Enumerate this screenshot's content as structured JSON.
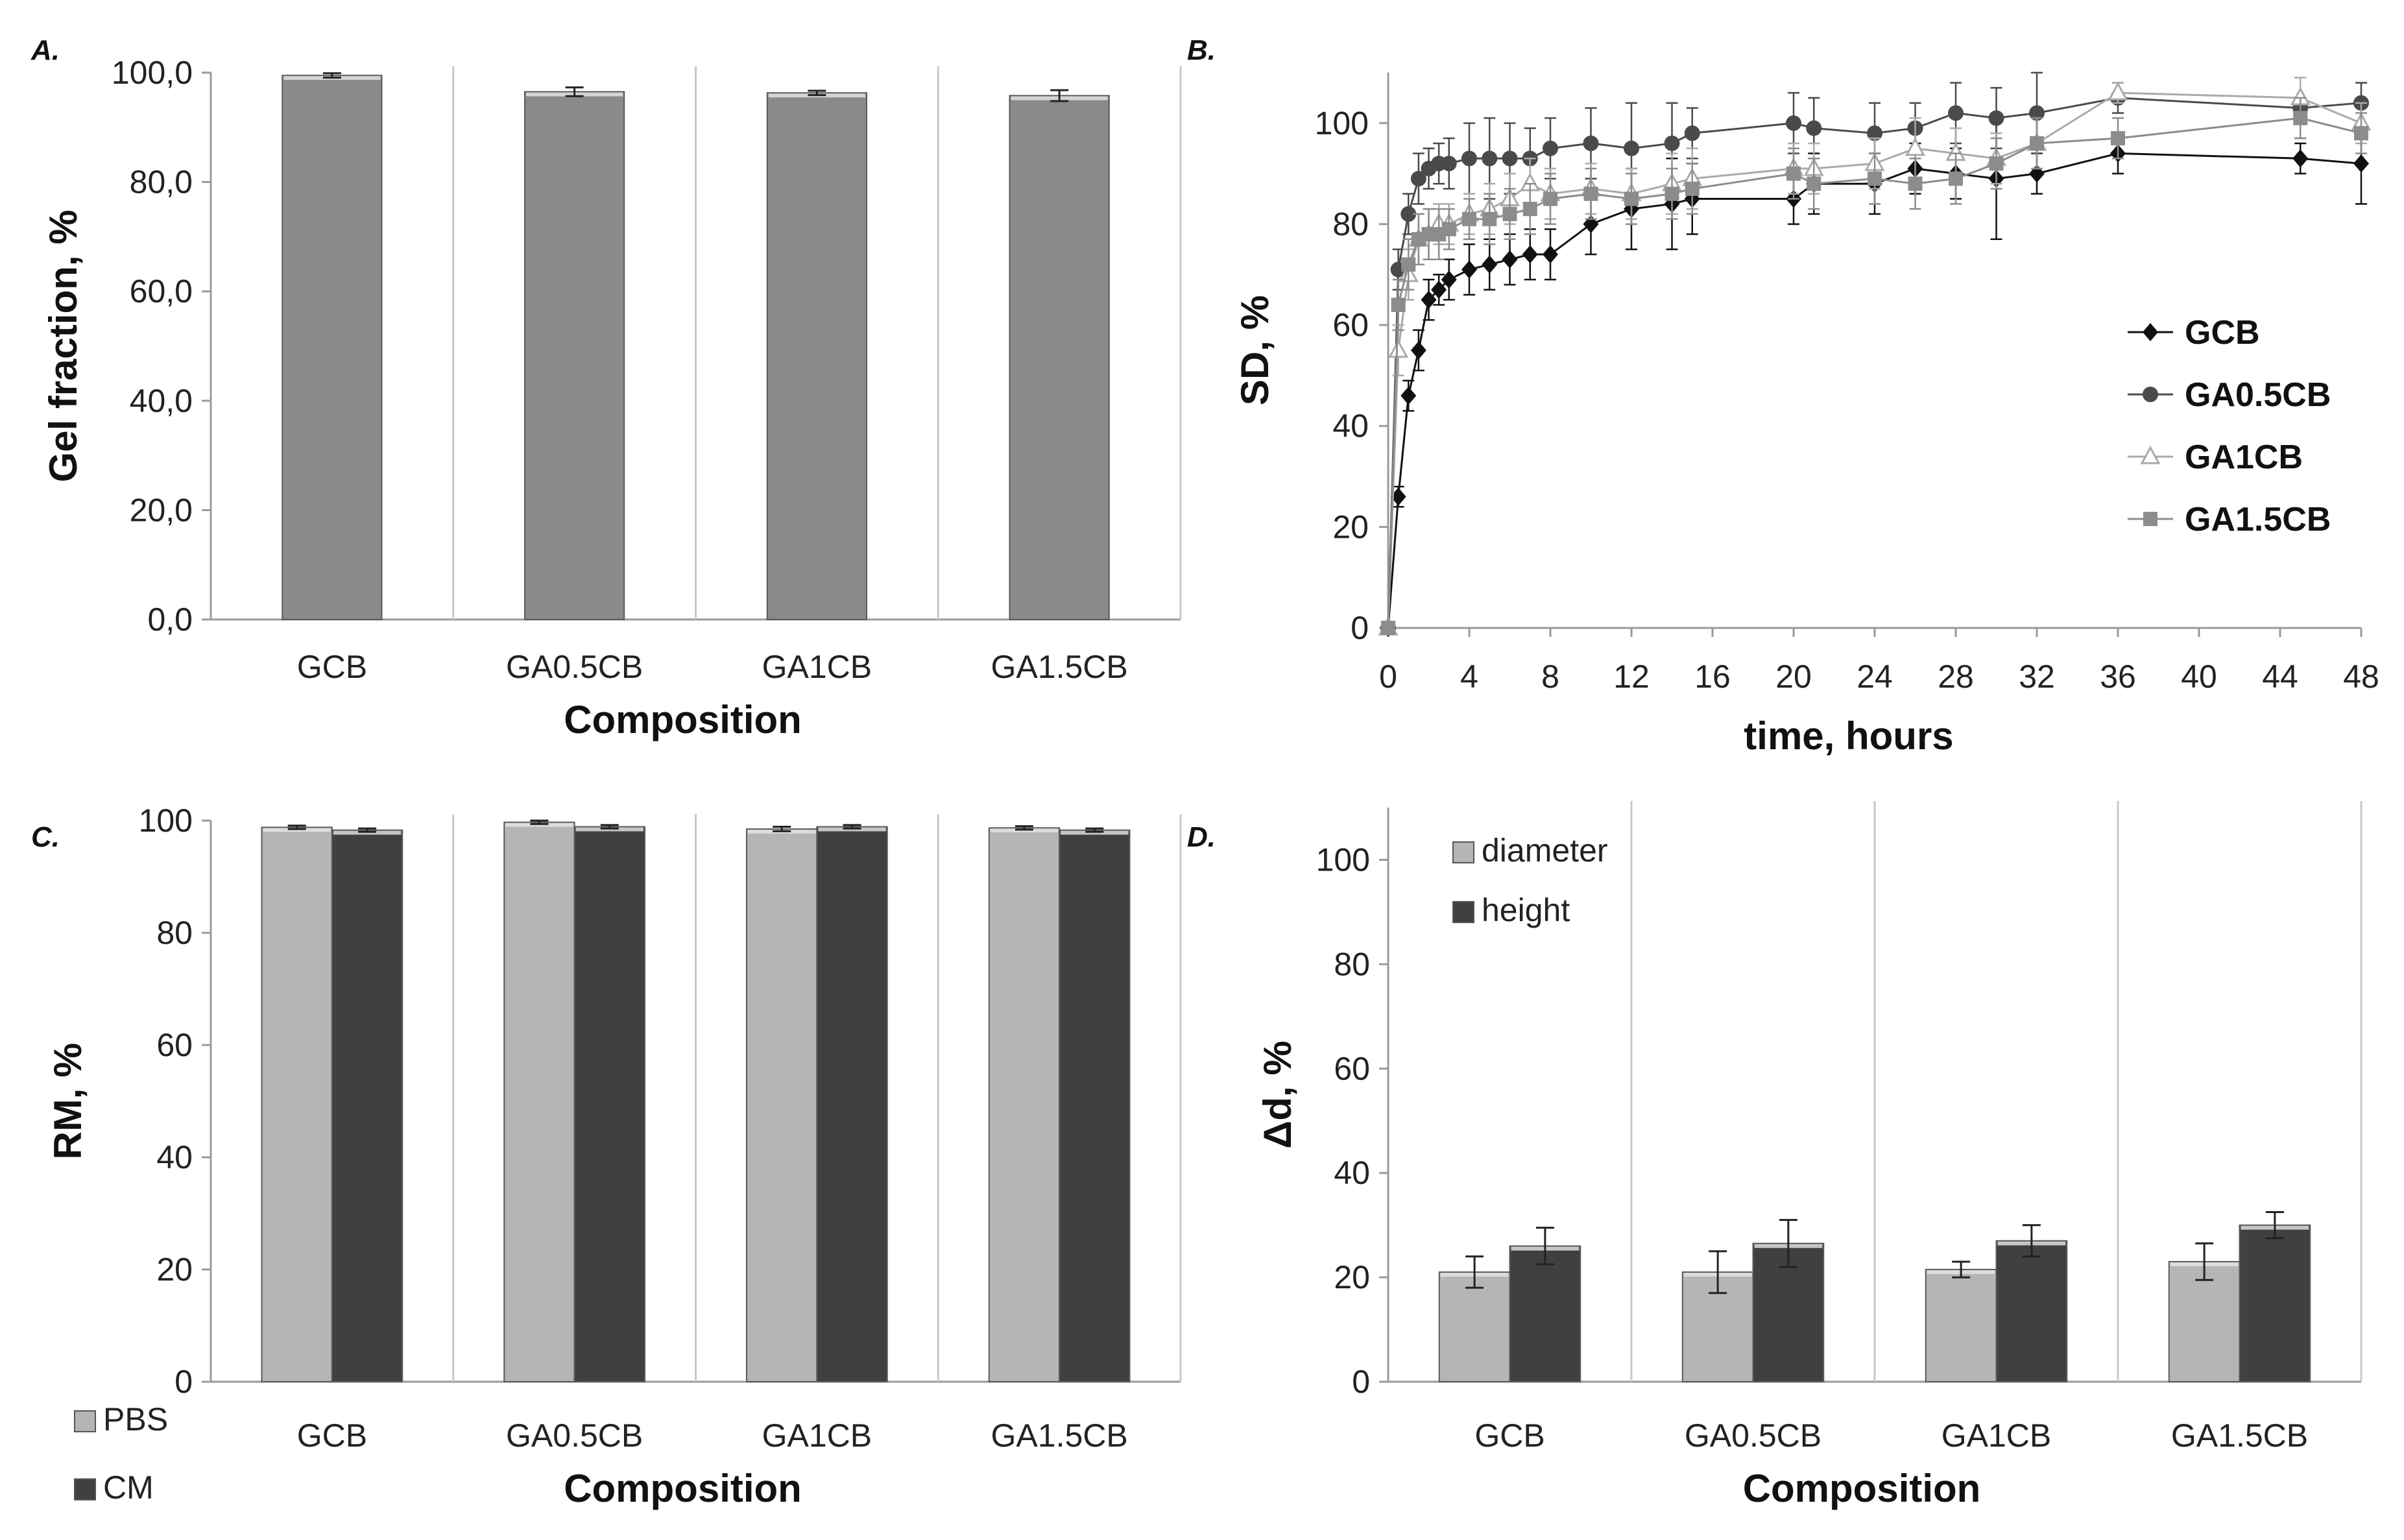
{
  "figure": {
    "panels": [
      {
        "letter": "A."
      },
      {
        "letter": "B."
      },
      {
        "letter": "C."
      },
      {
        "letter": "D."
      }
    ]
  },
  "chart_data": [
    {
      "panel": "A.",
      "type": "bar",
      "title": "",
      "xlabel": "Composition",
      "ylabel": "Gel  fraction, %",
      "ylim": [
        0,
        100
      ],
      "yticks": [
        "0,0",
        "20,0",
        "40,0",
        "60,0",
        "80,0",
        "100,0"
      ],
      "categories": [
        "GCB",
        "GA0.5CB",
        "GA1CB",
        "GA1.5CB"
      ],
      "series": [
        {
          "name": "Gel fraction",
          "color": "#8a8a8a",
          "values": [
            99.5,
            96.5,
            96.3,
            95.8
          ],
          "errors": [
            0.4,
            0.8,
            0.4,
            1.0
          ]
        }
      ],
      "grid": false
    },
    {
      "panel": "B.",
      "type": "line",
      "title": "",
      "xlabel": "time, hours",
      "ylabel": "SD, %",
      "xlim": [
        0,
        48
      ],
      "ylim": [
        0,
        110
      ],
      "xticks": [
        "0",
        "4",
        "8",
        "12",
        "16",
        "20",
        "24",
        "28",
        "32",
        "36",
        "40",
        "44",
        "48"
      ],
      "yticks": [
        "0",
        "20",
        "40",
        "60",
        "80",
        "100"
      ],
      "legend": "right",
      "series": [
        {
          "name": "GCB",
          "marker": "diamond",
          "color": "#111111",
          "x": [
            0,
            0.5,
            1,
            1.5,
            2,
            2.5,
            3,
            4,
            5,
            6,
            7,
            8,
            10,
            12,
            14,
            15,
            20,
            21,
            24,
            26,
            28,
            30,
            32,
            36,
            45,
            48
          ],
          "y": [
            0,
            26,
            46,
            55,
            65,
            67,
            69,
            71,
            72,
            73,
            74,
            74,
            80,
            83,
            84,
            85,
            85,
            88,
            88,
            91,
            90,
            89,
            90,
            94,
            93,
            92
          ],
          "err": [
            0,
            2,
            3,
            4,
            4,
            3,
            4,
            5,
            5,
            5,
            5,
            5,
            6,
            8,
            9,
            7,
            5,
            6,
            6,
            5,
            5,
            12,
            4,
            4,
            3,
            8
          ]
        },
        {
          "name": "GA0.5CB",
          "marker": "circle",
          "color": "#4a4a4a",
          "x": [
            0,
            0.5,
            1,
            1.5,
            2,
            2.5,
            3,
            4,
            5,
            6,
            7,
            8,
            10,
            12,
            14,
            15,
            20,
            21,
            24,
            26,
            28,
            30,
            32,
            36,
            45,
            48
          ],
          "y": [
            0,
            71,
            82,
            89,
            91,
            92,
            92,
            93,
            93,
            93,
            93,
            95,
            96,
            95,
            96,
            98,
            100,
            99,
            98,
            99,
            102,
            101,
            102,
            105,
            103,
            104
          ],
          "err": [
            0,
            4,
            4,
            5,
            4,
            4,
            5,
            7,
            8,
            7,
            6,
            6,
            7,
            9,
            8,
            5,
            6,
            6,
            6,
            5,
            6,
            6,
            8,
            3,
            6,
            4
          ]
        },
        {
          "name": "GA1CB",
          "marker": "triangle",
          "color": "#aaaaaa",
          "x": [
            0,
            0.5,
            1,
            1.5,
            2,
            2.5,
            3,
            4,
            5,
            6,
            7,
            8,
            10,
            12,
            14,
            15,
            20,
            21,
            24,
            26,
            28,
            30,
            32,
            36,
            45,
            48
          ],
          "y": [
            0,
            55,
            70,
            77,
            78,
            80,
            80,
            82,
            83,
            85,
            88,
            86,
            87,
            86,
            88,
            89,
            91,
            91,
            92,
            95,
            94,
            93,
            96,
            106,
            105,
            100
          ],
          "err": [
            0,
            5,
            5,
            5,
            5,
            4,
            4,
            4,
            5,
            5,
            5,
            5,
            5,
            5,
            6,
            6,
            5,
            5,
            5,
            6,
            5,
            5,
            5,
            2,
            4,
            4
          ]
        },
        {
          "name": "GA1.5CB",
          "marker": "square",
          "color": "#8c8c8c",
          "x": [
            0,
            0.5,
            1,
            1.5,
            2,
            2.5,
            3,
            4,
            5,
            6,
            7,
            8,
            10,
            12,
            14,
            15,
            20,
            21,
            24,
            26,
            28,
            30,
            32,
            36,
            45,
            48
          ],
          "y": [
            0,
            64,
            72,
            77,
            78,
            78,
            79,
            81,
            81,
            82,
            83,
            85,
            86,
            85,
            86,
            87,
            90,
            88,
            89,
            88,
            89,
            92,
            96,
            97,
            101,
            98
          ],
          "err": [
            0,
            5,
            5,
            5,
            5,
            5,
            4,
            4,
            5,
            5,
            5,
            5,
            5,
            5,
            5,
            5,
            5,
            5,
            5,
            5,
            5,
            5,
            5,
            4,
            4,
            4
          ]
        }
      ],
      "grid": false
    },
    {
      "panel": "C.",
      "type": "bar",
      "title": "",
      "xlabel": "Composition",
      "ylabel": "RM, %",
      "ylim": [
        0,
        100
      ],
      "yticks": [
        "0",
        "20",
        "40",
        "60",
        "80",
        "100"
      ],
      "categories": [
        "GCB",
        "GA0.5CB",
        "GA1CB",
        "GA1.5CB"
      ],
      "legend": "bottom-left",
      "series": [
        {
          "name": "PBS",
          "color": "#b5b5b5",
          "values": [
            98.8,
            99.7,
            98.5,
            98.7
          ],
          "errors": [
            0.3,
            0.3,
            0.4,
            0.3
          ]
        },
        {
          "name": "CM",
          "color": "#404040",
          "values": [
            98.3,
            98.9,
            98.9,
            98.3
          ],
          "errors": [
            0.3,
            0.3,
            0.3,
            0.3
          ]
        }
      ],
      "grid": false
    },
    {
      "panel": "D.",
      "type": "bar",
      "title": "",
      "xlabel": "Composition",
      "ylabel": "Δd, %",
      "ylim": [
        0,
        110
      ],
      "yticks": [
        "0",
        "20",
        "40",
        "60",
        "80",
        "100"
      ],
      "categories": [
        "GCB",
        "GA0.5CB",
        "GA1CB",
        "GA1.5CB"
      ],
      "legend": "top-left",
      "series": [
        {
          "name": "diameter",
          "color": "#b5b5b5",
          "values": [
            21,
            21,
            21.5,
            23
          ],
          "errors": [
            3,
            4,
            1.5,
            3.5
          ]
        },
        {
          "name": "height",
          "color": "#404040",
          "values": [
            26,
            26.5,
            27,
            30
          ],
          "errors": [
            3.5,
            4.5,
            3,
            2.5
          ]
        }
      ],
      "grid": false
    }
  ]
}
